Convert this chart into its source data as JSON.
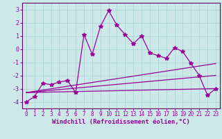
{
  "xlabel": "Windchill (Refroidissement éolien,°C)",
  "background_color": "#cce8e8",
  "grid_color": "#aad4d4",
  "line_color": "#990099",
  "spine_color": "#660066",
  "xlim": [
    -0.5,
    23.5
  ],
  "ylim": [
    -4.5,
    3.5
  ],
  "yticks": [
    -4,
    -3,
    -2,
    -1,
    0,
    1,
    2,
    3
  ],
  "xticks": [
    0,
    1,
    2,
    3,
    4,
    5,
    6,
    7,
    8,
    9,
    10,
    11,
    12,
    13,
    14,
    15,
    16,
    17,
    18,
    19,
    20,
    21,
    22,
    23
  ],
  "series_main_x": [
    0,
    1,
    2,
    3,
    4,
    5,
    6,
    7,
    8,
    9,
    10,
    11,
    12,
    13,
    14,
    15,
    16,
    17,
    18,
    19,
    20,
    21,
    22,
    23
  ],
  "series_main_y": [
    -4.0,
    -3.6,
    -2.6,
    -2.7,
    -2.5,
    -2.4,
    -3.3,
    1.1,
    -0.4,
    1.7,
    2.9,
    1.8,
    1.1,
    0.4,
    1.0,
    -0.3,
    -0.5,
    -0.7,
    0.1,
    -0.2,
    -1.1,
    -2.0,
    -3.5,
    -3.0
  ],
  "series_line1_x": [
    0,
    23
  ],
  "series_line1_y": [
    -3.3,
    -3.0
  ],
  "series_line2_x": [
    0,
    23
  ],
  "series_line2_y": [
    -3.3,
    -2.0
  ],
  "series_line3_x": [
    0,
    23
  ],
  "series_line3_y": [
    -3.3,
    -1.1
  ],
  "xlabel_fontsize": 6.5,
  "tick_fontsize": 5.5,
  "ytick_fontsize": 6.0
}
